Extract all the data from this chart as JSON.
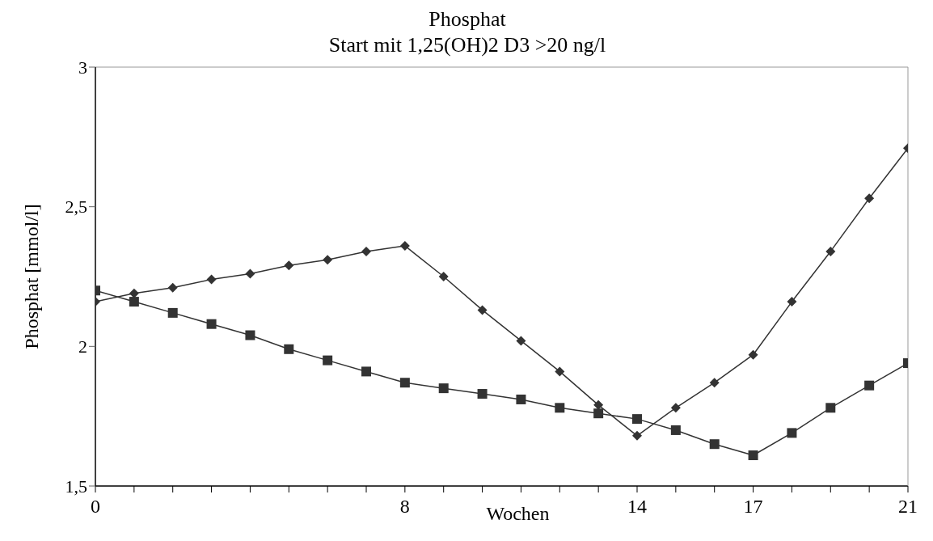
{
  "chart_data": {
    "type": "line",
    "title": "Phosphat",
    "subtitle": "Start mit 1,25(OH)2 D3 >20 ng/l",
    "xlabel": "Wochen",
    "ylabel": "Phosphat [mmol/l]",
    "x": [
      0,
      1,
      2,
      3,
      4,
      5,
      6,
      7,
      8,
      9,
      10,
      11,
      12,
      13,
      14,
      15,
      16,
      17,
      18,
      19,
      20,
      21
    ],
    "series": [
      {
        "color": "#333333",
        "marker": "diamond",
        "values": [
          2.16,
          2.19,
          2.21,
          2.24,
          2.26,
          2.29,
          2.31,
          2.34,
          2.36,
          2.25,
          2.13,
          2.02,
          1.91,
          1.79,
          1.68,
          1.78,
          1.87,
          1.97,
          2.16,
          2.34,
          2.53,
          2.71
        ]
      },
      {
        "color": "#333333",
        "marker": "square",
        "values": [
          2.2,
          2.16,
          2.12,
          2.08,
          2.04,
          1.99,
          1.95,
          1.91,
          1.87,
          1.85,
          1.83,
          1.81,
          1.78,
          1.76,
          1.74,
          1.7,
          1.65,
          1.61,
          1.69,
          1.78,
          1.86,
          1.94
        ]
      }
    ],
    "xlim": [
      0,
      21
    ],
    "xticks": [
      0,
      {
        "value": 1,
        "label": null
      },
      {
        "value": 2,
        "label": null
      },
      {
        "value": 3,
        "label": null
      },
      {
        "value": 4,
        "label": null
      },
      {
        "value": 5,
        "label": null
      },
      {
        "value": 6,
        "label": null
      },
      {
        "value": 7,
        "label": null
      },
      8,
      {
        "value": 9,
        "label": null
      },
      {
        "value": 10,
        "label": null
      },
      {
        "value": 11,
        "label": null
      },
      {
        "value": 12,
        "label": null
      },
      {
        "value": 13,
        "label": null
      },
      14,
      {
        "value": 15,
        "label": null
      },
      {
        "value": 16,
        "label": null
      },
      17,
      {
        "value": 18,
        "label": null
      },
      {
        "value": 19,
        "label": null
      },
      {
        "value": 20,
        "label": null
      },
      21
    ],
    "ylim": [
      1.5,
      3
    ],
    "yticks": [
      {
        "value": 1.5,
        "label": "1,5"
      },
      {
        "value": 2,
        "label": "2"
      },
      {
        "value": 2.5,
        "label": "2,5"
      },
      {
        "value": 3,
        "label": "3"
      }
    ],
    "grid": false,
    "legend": false,
    "line_style": "solid"
  }
}
